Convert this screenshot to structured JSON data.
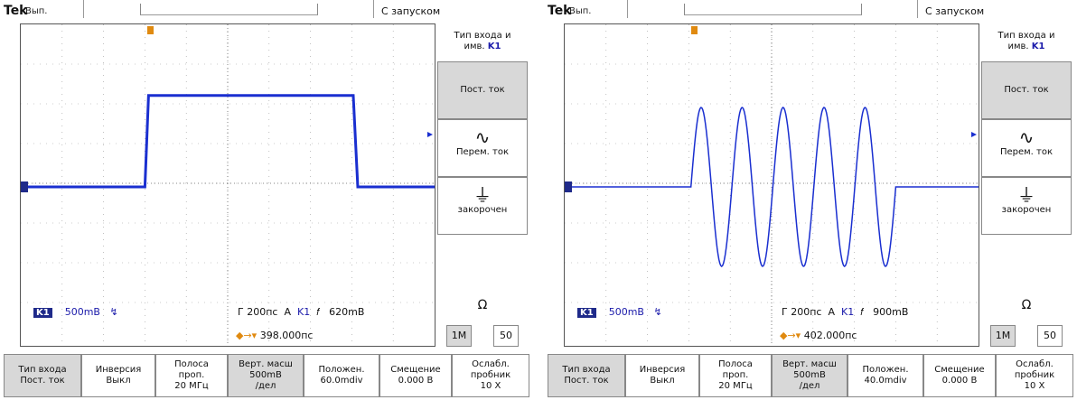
{
  "panels": [
    {
      "header": {
        "brand": "Tek",
        "mode": "Вып.",
        "trigger_status": "С запуском"
      },
      "readouts": {
        "channel": "K1",
        "scale": "500mB",
        "bw_symbol": "↯",
        "timebase": "Г 200пс",
        "trig_mode": "A",
        "trig_src": "K1",
        "trig_slope": "𝑓",
        "trig_level": "620mB",
        "delay": "398.000пс"
      },
      "side_menu": {
        "title_line1": "Тип входа и",
        "title_line2": "имв.",
        "title_ch": "K1",
        "dc": "Пост. ток",
        "ac": "Перем. ток",
        "gnd": "закорочен",
        "impedance_label": "Ω",
        "imp_1m": "1M",
        "imp_50": "50"
      },
      "bottom_menu": [
        {
          "l1": "Тип входа",
          "l2": "Пост. ток",
          "l3": ""
        },
        {
          "l1": "Инверсия",
          "l2": "Выкл",
          "l3": ""
        },
        {
          "l1": "Полоса",
          "l2": "проп.",
          "l3": "20 МГц"
        },
        {
          "l1": "Верт. масш",
          "l2": "500mB",
          "l3": "/дел"
        },
        {
          "l1": "Положен.",
          "l2": "60.0mdiv",
          "l3": ""
        },
        {
          "l1": "Смещение",
          "l2": "0.000 B",
          "l3": ""
        },
        {
          "l1": "Ослабл.",
          "l2": "пробник",
          "l3": "10 X"
        }
      ],
      "waveform": {
        "type": "pulse",
        "baseline_div": 0,
        "high_div": 2.3,
        "start_div": 3.0,
        "end_div": 8.1
      }
    },
    {
      "header": {
        "brand": "Tek",
        "mode": "Вып.",
        "trigger_status": "С запуском"
      },
      "readouts": {
        "channel": "K1",
        "scale": "500mB",
        "bw_symbol": "↯",
        "timebase": "Г 200пс",
        "trig_mode": "A",
        "trig_src": "K1",
        "trig_slope": "𝑓",
        "trig_level": "900mB",
        "delay": "402.000пс"
      },
      "side_menu": {
        "title_line1": "Тип входа и",
        "title_line2": "имв.",
        "title_ch": "K1",
        "dc": "Пост. ток",
        "ac": "Перем. ток",
        "gnd": "закорочен",
        "impedance_label": "Ω",
        "imp_1m": "1M",
        "imp_50": "50"
      },
      "bottom_menu": [
        {
          "l1": "Тип входа",
          "l2": "Пост. ток",
          "l3": ""
        },
        {
          "l1": "Инверсия",
          "l2": "Выкл",
          "l3": ""
        },
        {
          "l1": "Полоса",
          "l2": "проп.",
          "l3": "20 МГц"
        },
        {
          "l1": "Верт. масш",
          "l2": "500mB",
          "l3": "/дел"
        },
        {
          "l1": "Положен.",
          "l2": "40.0mdiv",
          "l3": ""
        },
        {
          "l1": "Смещение",
          "l2": "0.000 B",
          "l3": ""
        },
        {
          "l1": "Ослабл.",
          "l2": "пробник",
          "l3": "10 X"
        }
      ],
      "waveform": {
        "type": "burst",
        "baseline_div": 0,
        "amplitude_div": 2.0,
        "cycles": 5,
        "start_div": 3.05,
        "end_div": 8.0
      }
    }
  ],
  "colors": {
    "trace": "#1a2fd0",
    "trigger_marker": "#e08a10",
    "grid": "#9a9a9a"
  }
}
